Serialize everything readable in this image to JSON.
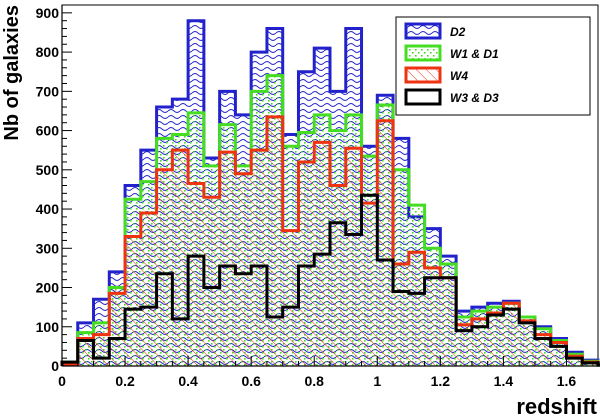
{
  "chart_data": {
    "type": "histogram",
    "xlabel": "redshift",
    "ylabel": "Nb of galaxies",
    "xlim": [
      0,
      1.7
    ],
    "ylim": [
      0,
      920
    ],
    "bin_width": 0.05,
    "xticks": [
      0,
      0.2,
      0.4,
      0.6,
      0.8,
      1,
      1.2,
      1.4,
      1.6
    ],
    "xtick_labels": [
      "0",
      "0.2",
      "0.4",
      "0.6",
      "0.8",
      "1",
      "1.2",
      "1.4",
      "1.6"
    ],
    "yticks": [
      0,
      100,
      200,
      300,
      400,
      500,
      600,
      700,
      800,
      900
    ],
    "ytick_labels": [
      "0",
      "100",
      "200",
      "300",
      "400",
      "500",
      "600",
      "700",
      "800",
      "900"
    ],
    "legend_position": "top-right",
    "series": [
      {
        "name": "D2",
        "color": "#2222cc",
        "fill": "wave",
        "values": [
          10,
          110,
          170,
          240,
          460,
          550,
          660,
          680,
          880,
          530,
          700,
          640,
          800,
          860,
          590,
          750,
          810,
          700,
          860,
          560,
          690,
          580,
          380,
          350,
          280,
          140,
          150,
          160,
          165,
          125,
          100,
          70,
          35,
          15,
          8
        ]
      },
      {
        "name": "W1 & D1",
        "color": "#44dd22",
        "fill": "dots",
        "values": [
          10,
          85,
          110,
          200,
          425,
          470,
          580,
          590,
          645,
          510,
          615,
          510,
          700,
          740,
          560,
          595,
          640,
          600,
          640,
          535,
          665,
          500,
          410,
          300,
          260,
          125,
          140,
          150,
          160,
          125,
          95,
          65,
          30,
          12,
          5
        ]
      },
      {
        "name": "W4",
        "color": "#ee3311",
        "fill": "hatch",
        "values": [
          5,
          70,
          80,
          185,
          330,
          390,
          500,
          550,
          465,
          430,
          545,
          490,
          550,
          635,
          345,
          520,
          570,
          460,
          555,
          415,
          625,
          260,
          290,
          250,
          225,
          105,
          120,
          135,
          160,
          115,
          80,
          60,
          25,
          10,
          3
        ]
      },
      {
        "name": "W3 & D3",
        "color": "#000000",
        "fill": "none",
        "values": [
          10,
          65,
          20,
          70,
          145,
          150,
          235,
          120,
          280,
          200,
          255,
          235,
          255,
          125,
          150,
          255,
          285,
          365,
          335,
          435,
          270,
          190,
          185,
          225,
          225,
          90,
          100,
          130,
          145,
          110,
          70,
          50,
          20,
          8,
          2
        ]
      }
    ]
  }
}
